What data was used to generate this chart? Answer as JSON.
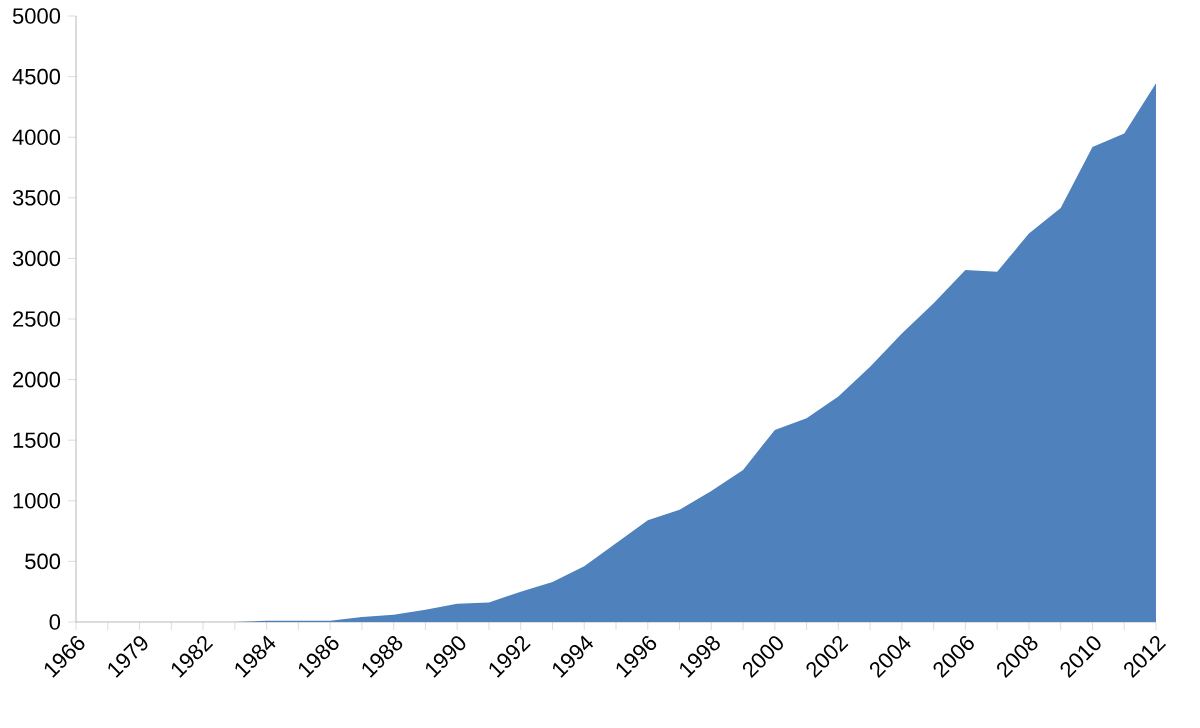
{
  "chart_data": {
    "type": "area",
    "categories": [
      "1966",
      null,
      "1979",
      null,
      "1982",
      null,
      "1984",
      null,
      "1986",
      null,
      "1988",
      null,
      "1990",
      null,
      "1992",
      null,
      "1994",
      null,
      "1996",
      null,
      "1998",
      null,
      "2000",
      null,
      "2002",
      null,
      "2004",
      null,
      "2006",
      null,
      "2008",
      null,
      "2010",
      null,
      "2012"
    ],
    "series": [
      {
        "color": "#4f81bd",
        "values": [
          0,
          0,
          0,
          0,
          0,
          0,
          10,
          10,
          10,
          40,
          60,
          100,
          150,
          160,
          250,
          330,
          460,
          650,
          840,
          925,
          1080,
          1255,
          1585,
          1680,
          1860,
          2105,
          2380,
          2630,
          2905,
          2890,
          3205,
          3415,
          3920,
          4030,
          4445
        ]
      }
    ],
    "ylim": [
      0,
      5000
    ],
    "yticks": [
      0,
      500,
      1000,
      1500,
      2000,
      2500,
      3000,
      3500,
      4000,
      4500,
      5000
    ]
  }
}
